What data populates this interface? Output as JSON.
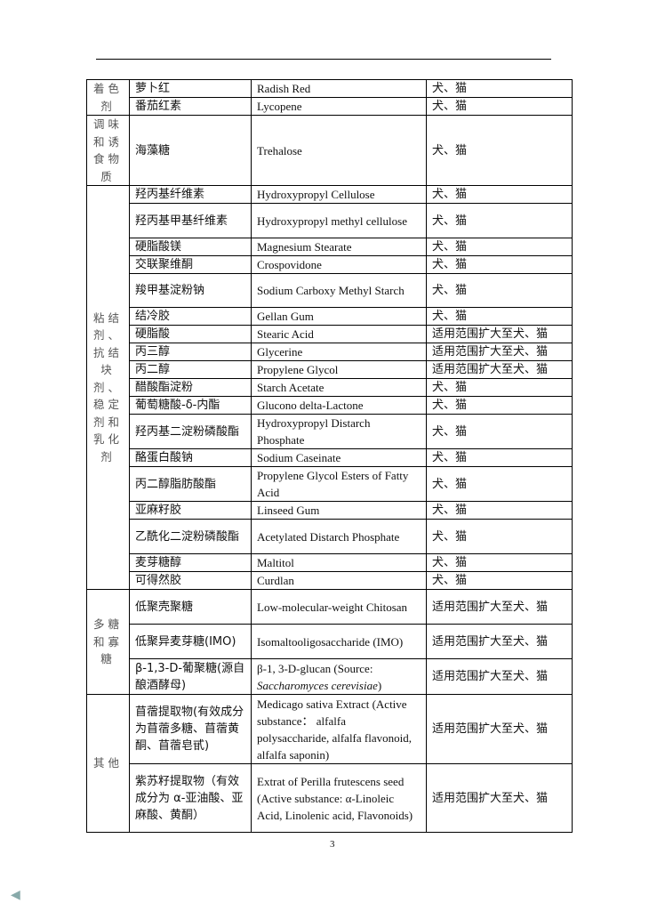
{
  "page_number": "3",
  "groups": [
    {
      "category": "着色剂",
      "rows": [
        {
          "cn": "萝卜红",
          "en": "Radish Red",
          "scope": "犬、猫"
        },
        {
          "cn": "番茄红素",
          "en": "Lycopene",
          "scope": "犬、猫"
        }
      ]
    },
    {
      "category": "调味和诱食物质",
      "rows": [
        {
          "cn": "海藻糖",
          "en": "Trehalose",
          "scope": "犬、猫"
        }
      ]
    },
    {
      "category": "粘结剂、抗结块剂、稳定剂和乳化剂",
      "rows": [
        {
          "cn": "羟丙基纤维素",
          "en": "Hydroxypropyl Cellulose",
          "scope": "犬、猫"
        },
        {
          "cn": "羟丙基甲基纤维素",
          "en": "Hydroxypropyl methyl cellulose",
          "scope": "犬、猫"
        },
        {
          "cn": "硬脂酸镁",
          "en": "Magnesium Stearate",
          "scope": "犬、猫"
        },
        {
          "cn": "交联聚维酮",
          "en": "Crospovidone",
          "scope": "犬、猫"
        },
        {
          "cn": "羧甲基淀粉钠",
          "en": "Sodium Carboxy Methyl Starch",
          "scope": "犬、猫"
        },
        {
          "cn": "结冷胶",
          "en": "Gellan Gum",
          "scope": "犬、猫"
        },
        {
          "cn": "硬脂酸",
          "en": "Stearic Acid",
          "scope": "适用范围扩大至犬、猫"
        },
        {
          "cn": "丙三醇",
          "en": "Glycerine",
          "scope": "适用范围扩大至犬、猫"
        },
        {
          "cn": "丙二醇",
          "en": "Propylene Glycol",
          "scope": "适用范围扩大至犬、猫"
        },
        {
          "cn": "醋酸酯淀粉",
          "en": "Starch Acetate",
          "scope": "犬、猫"
        },
        {
          "cn": "葡萄糖酸-δ-内酯",
          "en": "Glucono delta-Lactone",
          "scope": "犬、猫"
        },
        {
          "cn": "羟丙基二淀粉磷酸酯",
          "en": "Hydroxypropyl Distarch Phosphate",
          "scope": "犬、猫"
        },
        {
          "cn": "酪蛋白酸钠",
          "en": "Sodium Caseinate",
          "scope": "犬、猫"
        },
        {
          "cn": "丙二醇脂肪酸酯",
          "en": "Propylene Glycol Esters of Fatty Acid",
          "scope": "犬、猫"
        },
        {
          "cn": "亚麻籽胶",
          "en": "Linseed Gum",
          "scope": "犬、猫"
        },
        {
          "cn": "乙酰化二淀粉磷酸酯",
          "en": "Acetylated Distarch Phosphate",
          "scope": "犬、猫"
        },
        {
          "cn": "麦芽糖醇",
          "en": "Maltitol",
          "scope": "犬、猫"
        },
        {
          "cn": "可得然胶",
          "en": "Curdlan",
          "scope": "犬、猫"
        }
      ]
    },
    {
      "category": "多糖和寡糖",
      "rows": [
        {
          "cn": "低聚壳聚糖",
          "en": "Low-molecular-weight Chitosan",
          "scope": "适用范围扩大至犬、猫"
        },
        {
          "cn": "低聚异麦芽糖(IMO)",
          "en": "Isomaltooligosaccharide (IMO)",
          "scope": "适用范围扩大至犬、猫"
        },
        {
          "cn": "β-1,3-D-葡聚糖(源自酿酒酵母)",
          "en": "β-1, 3-D-glucan (Source: ",
          "en_italic": "Saccharomyces cerevisiae",
          "en_suffix": ")",
          "scope": "适用范围扩大至犬、猫"
        }
      ]
    },
    {
      "category": "其他",
      "rows": [
        {
          "cn": "苜蓿提取物(有效成分为苜蓿多糖、苜蓿黄酮、苜蓿皂甙)",
          "en": "Medicago sativa Extract (Active substance： alfalfa polysaccharide, alfalfa flavonoid, alfalfa saponin)",
          "scope": "适用范围扩大至犬、猫"
        },
        {
          "cn": "紫苏籽提取物（有效成分为 α-亚油酸、亚麻酸、黄酮）",
          "en": "Extrat of Perilla frutescens seed (Active substance: α-Linoleic Acid, Linolenic acid, Flavonoids)",
          "scope": "适用范围扩大至犬、猫"
        }
      ]
    }
  ]
}
